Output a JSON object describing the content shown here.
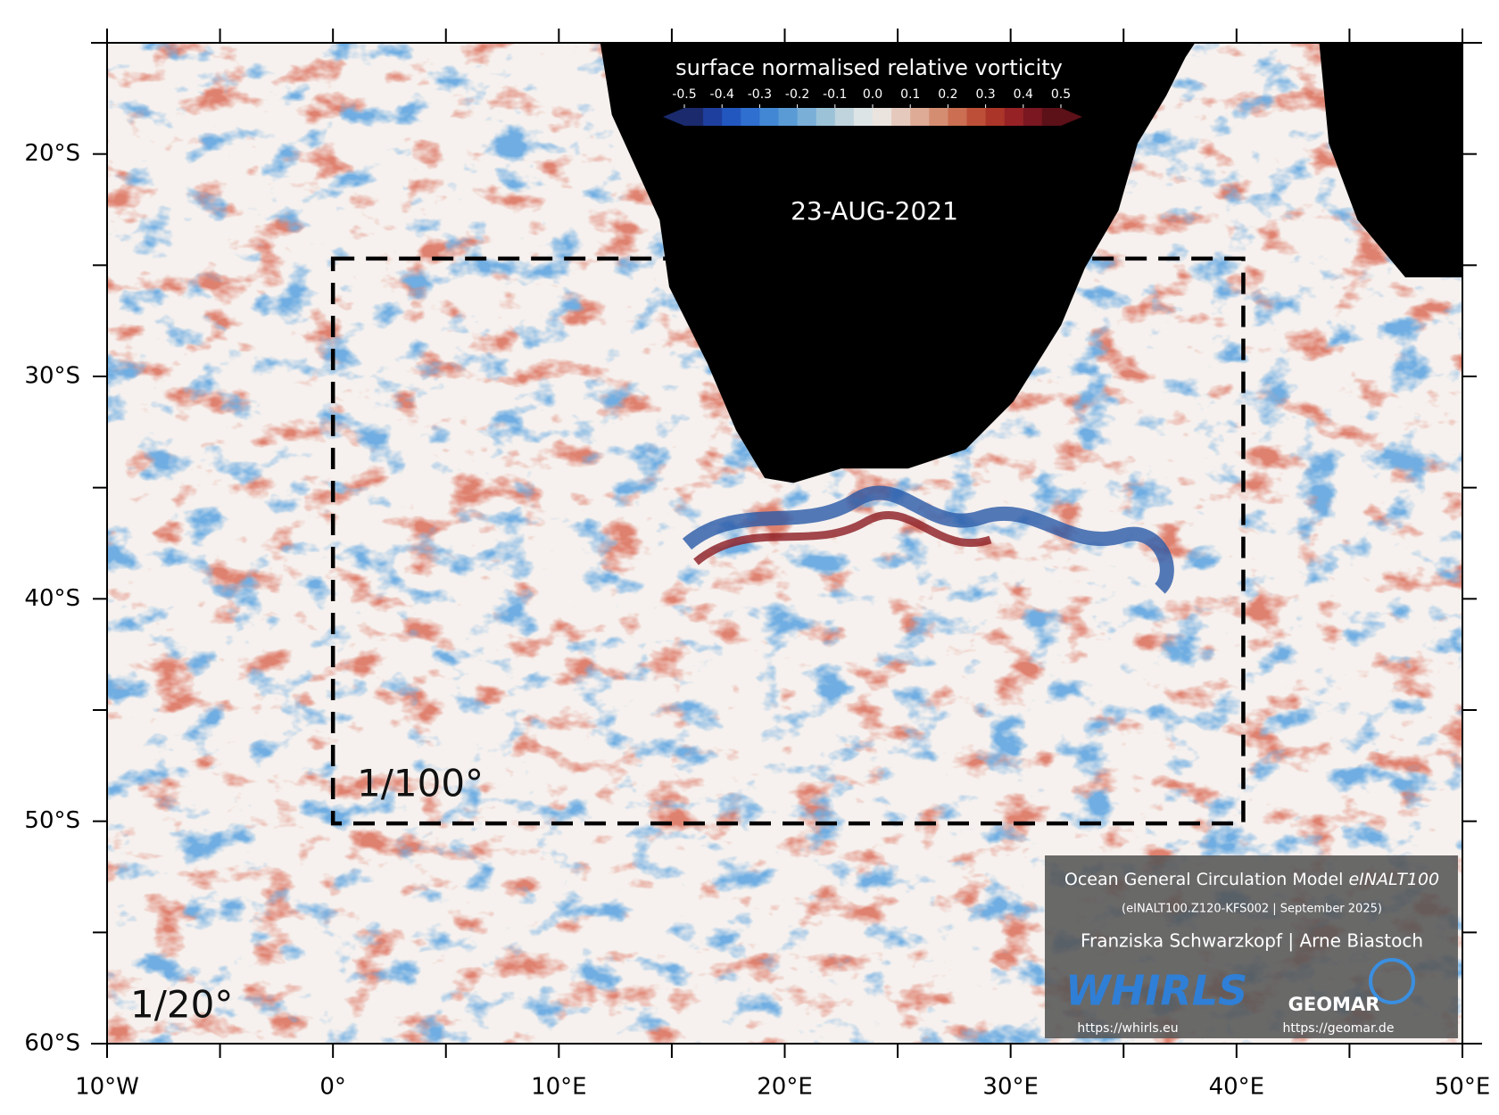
{
  "map": {
    "xlim": [
      -10,
      50
    ],
    "ylim": [
      -15,
      -60
    ],
    "xticks": [
      {
        "value": -10,
        "label": "10°W"
      },
      {
        "value": 0,
        "label": "0°"
      },
      {
        "value": 10,
        "label": "10°E"
      },
      {
        "value": 20,
        "label": "20°E"
      },
      {
        "value": 30,
        "label": "30°E"
      },
      {
        "value": 40,
        "label": "40°E"
      },
      {
        "value": 50,
        "label": "50°E"
      }
    ],
    "yticks": [
      {
        "value": -20,
        "label": "20°S"
      },
      {
        "value": -30,
        "label": "30°S"
      },
      {
        "value": -40,
        "label": "40°S"
      },
      {
        "value": -50,
        "label": "50°S"
      },
      {
        "value": -60,
        "label": "60°S"
      }
    ],
    "minor_xticks": [
      -5,
      5,
      15,
      25,
      35,
      45
    ],
    "minor_yticks": [
      -25,
      -35,
      -45,
      -55
    ],
    "fine_region": {
      "lon": [
        0,
        40.3
      ],
      "lat": [
        -24.7,
        -50.1
      ],
      "label": "1/100°"
    },
    "coarse_label": "1/20°",
    "date": "23-AUG-2021"
  },
  "colorbar": {
    "title": "surface normalised relative vorticity",
    "lim": [
      -0.5,
      0.5
    ],
    "ticks": [
      -0.5,
      -0.4,
      -0.3,
      -0.2,
      -0.1,
      {
        "value": 0,
        "label": "0.0"
      },
      0.1,
      0.2,
      0.3,
      0.4,
      0.5
    ],
    "colors": [
      "#1a2a6c",
      "#1f3f9e",
      "#2357c0",
      "#2f6fcf",
      "#4287d3",
      "#5a9bd5",
      "#7aafd8",
      "#9cc2d8",
      "#bfd4dd",
      "#dde4e6",
      "#ebe3de",
      "#e5c9bd",
      "#deab96",
      "#d58d72",
      "#cb6e52",
      "#bd4f39",
      "#ab3529",
      "#962225",
      "#7a1720",
      "#5c1018"
    ]
  },
  "credits": {
    "title": "Ocean General Circulation Model ",
    "model": "eINALT100",
    "config": "(eINALT100.Z120-KFS002 | September 2025)",
    "authors": "Franziska Schwarzkopf | Arne Biastoch",
    "logos": [
      {
        "name": "WHIRLS",
        "url": "https://whirls.eu"
      },
      {
        "name": "GEOMAR",
        "url": "https://geomar.de"
      }
    ]
  }
}
